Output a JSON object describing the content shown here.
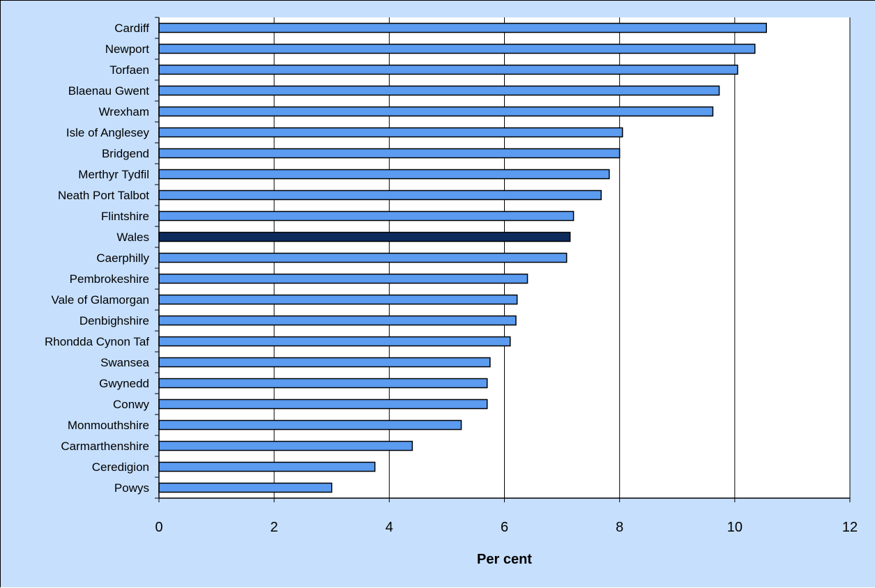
{
  "chart_data": {
    "type": "bar",
    "orientation": "horizontal",
    "title": "",
    "xlabel": "Per cent",
    "ylabel": "",
    "xlim": [
      0,
      12
    ],
    "xticks": [
      0,
      2,
      4,
      6,
      8,
      10,
      12
    ],
    "grid": "vertical",
    "legend": "none",
    "categories": [
      "Cardiff",
      "Newport",
      "Torfaen",
      "Blaenau Gwent",
      "Wrexham",
      "Isle of Anglesey",
      "Bridgend",
      "Merthyr Tydfil",
      "Neath Port Talbot",
      "Flintshire",
      "Wales",
      "Caerphilly",
      "Pembrokeshire",
      "Vale of Glamorgan",
      "Denbighshire",
      "Rhondda Cynon Taf",
      "Swansea",
      "Gwynedd",
      "Conwy",
      "Monmouthshire",
      "Carmarthenshire",
      "Ceredigion",
      "Powys"
    ],
    "values": [
      10.55,
      10.35,
      10.05,
      9.73,
      9.62,
      8.05,
      8.0,
      7.82,
      7.68,
      7.2,
      7.14,
      7.08,
      6.4,
      6.22,
      6.2,
      6.1,
      5.75,
      5.7,
      5.7,
      5.25,
      4.4,
      3.75,
      3.0
    ],
    "highlight": "Wales",
    "colors": {
      "bar": "#5b9bf0",
      "highlight_bar": "#0c2b5c",
      "plot_background": "#ffffff",
      "chart_background": "#c6dffc",
      "gridline": "#000000"
    }
  }
}
